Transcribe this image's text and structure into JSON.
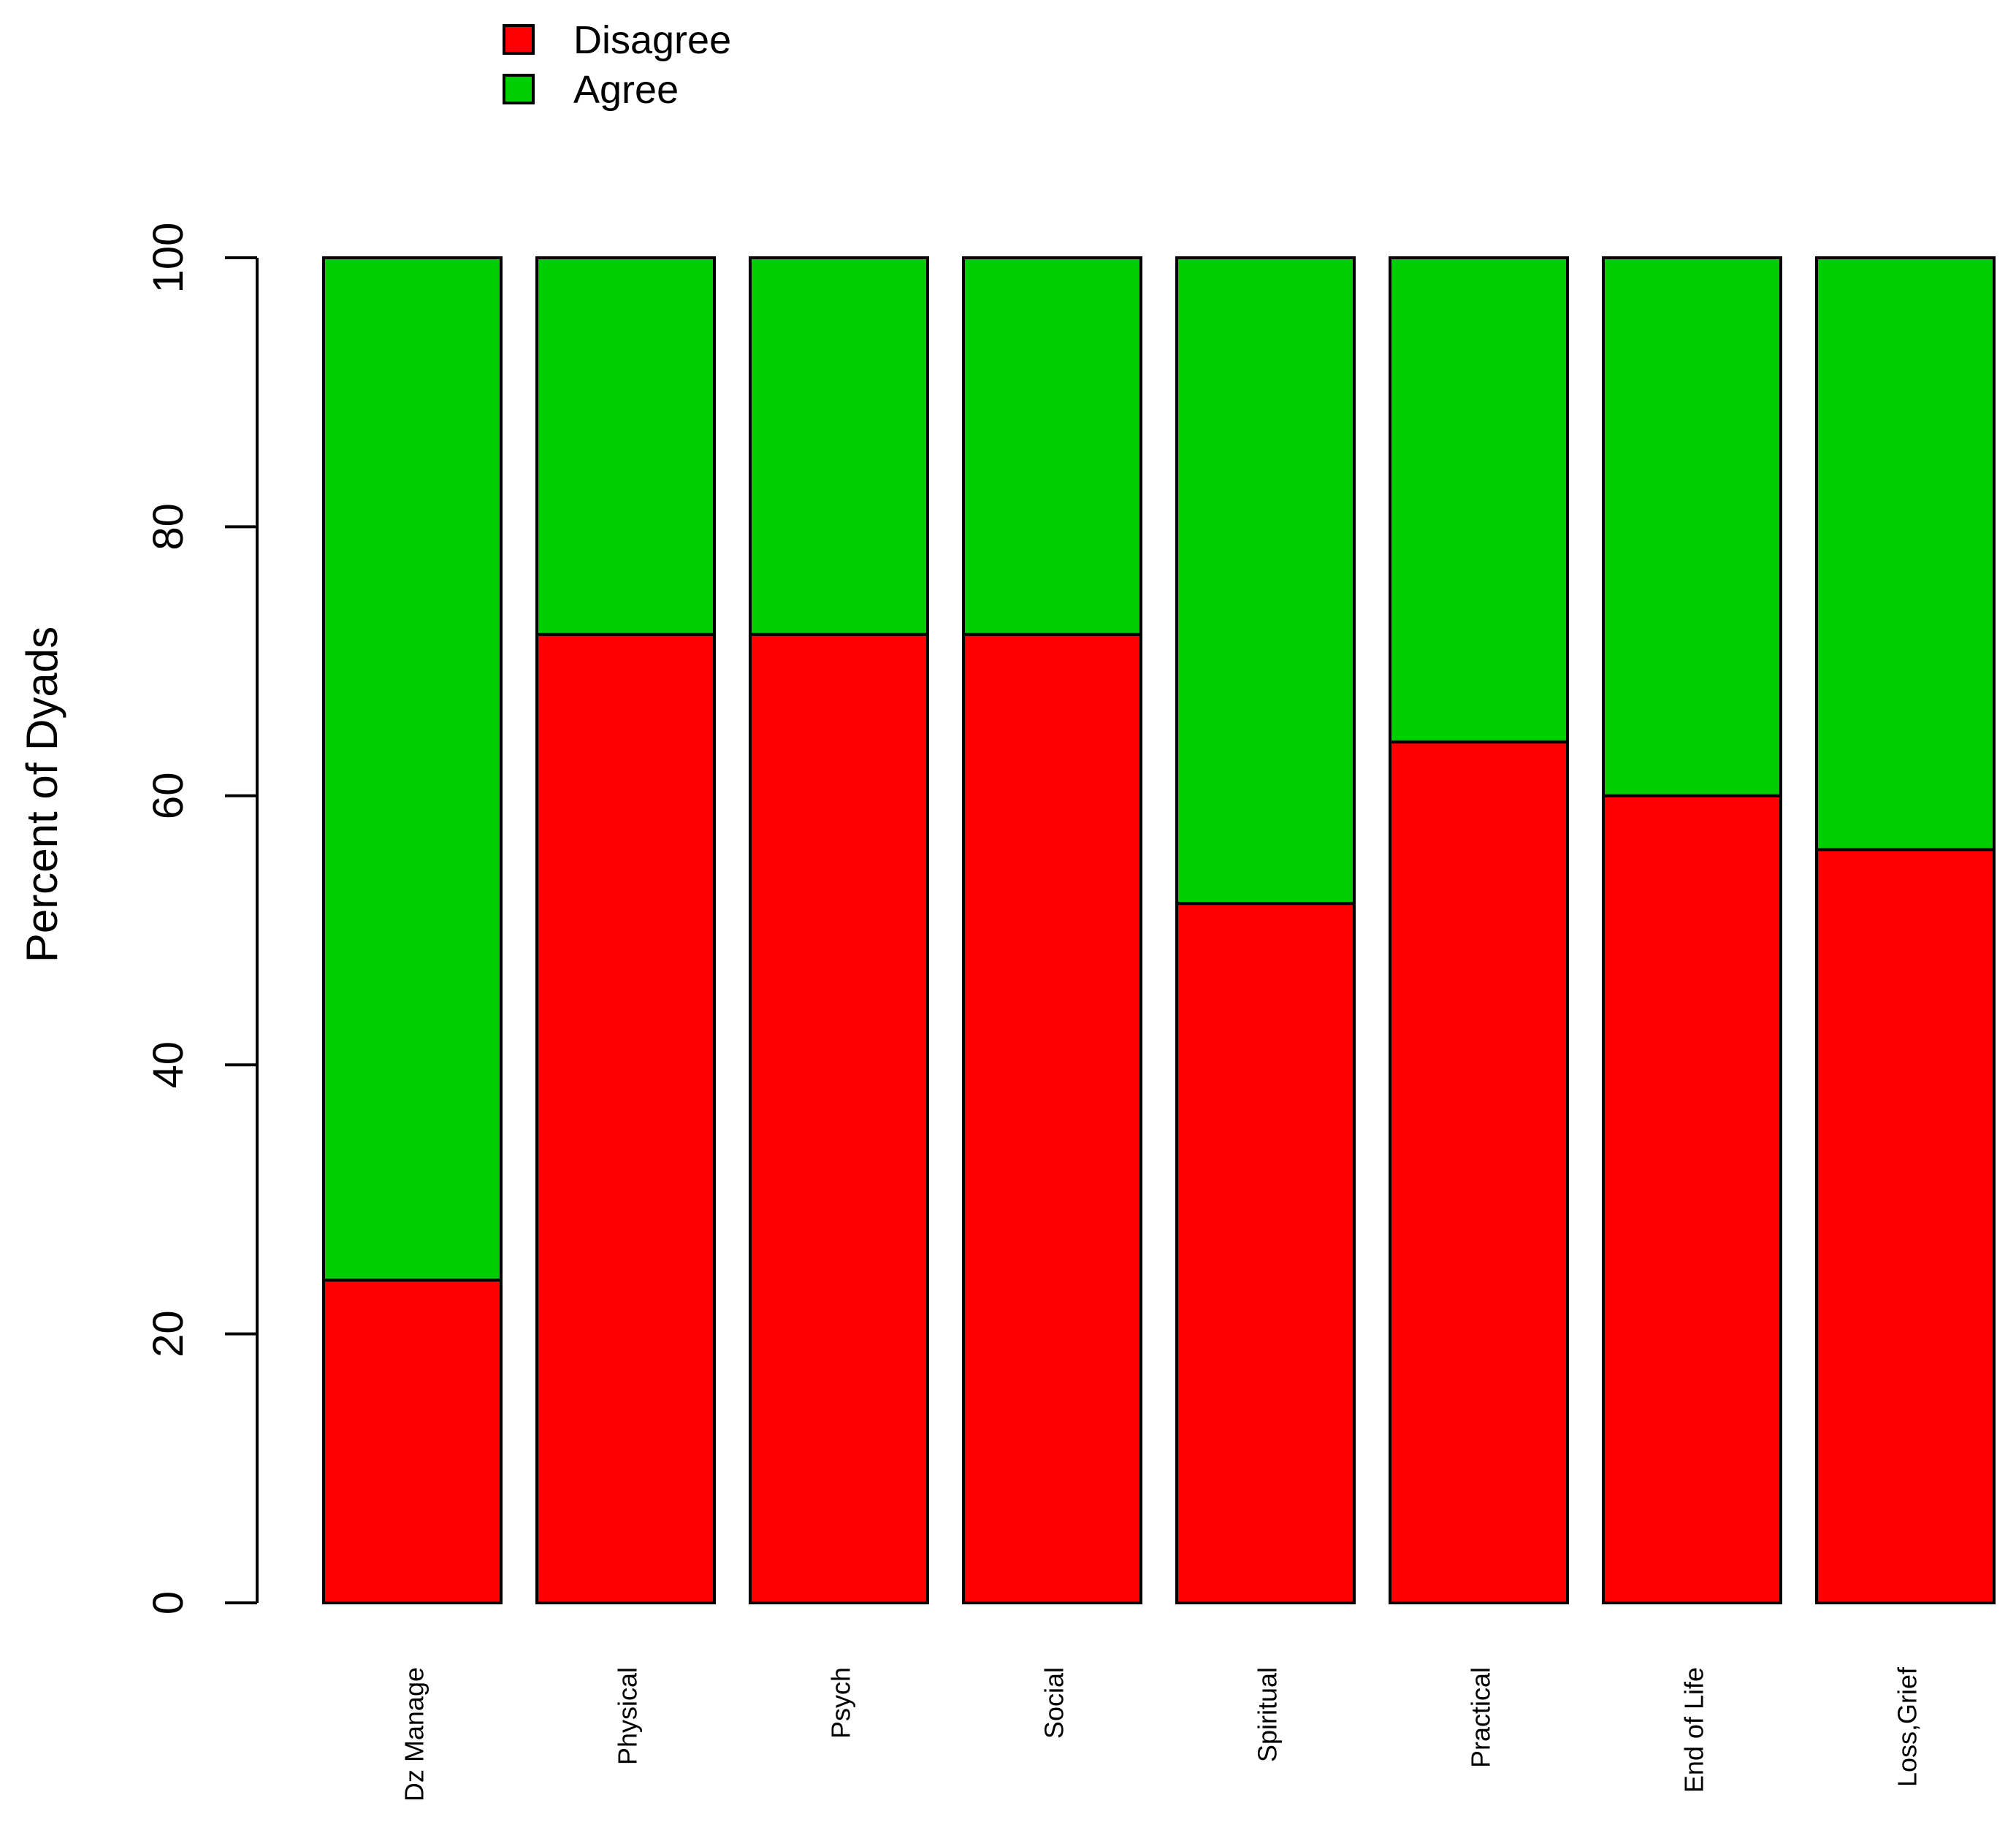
{
  "chart_data": {
    "type": "bar",
    "stacked": true,
    "categories": [
      "Dz Manage",
      "Physical",
      "Psych",
      "Social",
      "Spiritual",
      "Practical",
      "End of Life",
      "Loss,Grief"
    ],
    "series": [
      {
        "name": "Disagree",
        "color": "#FF0000",
        "values": [
          24,
          72,
          72,
          72,
          52,
          64,
          60,
          56
        ]
      },
      {
        "name": "Agree",
        "color": "#00CD00",
        "values": [
          76,
          28,
          28,
          28,
          48,
          36,
          40,
          44
        ]
      }
    ],
    "ylabel": "Percent of Dyads",
    "xlabel": "",
    "ylim": [
      0,
      100
    ],
    "yticks": [
      0,
      20,
      40,
      60,
      80,
      100
    ],
    "grid": false,
    "legend_position": "top-left",
    "x_tick_label_orientation": "vertical"
  }
}
